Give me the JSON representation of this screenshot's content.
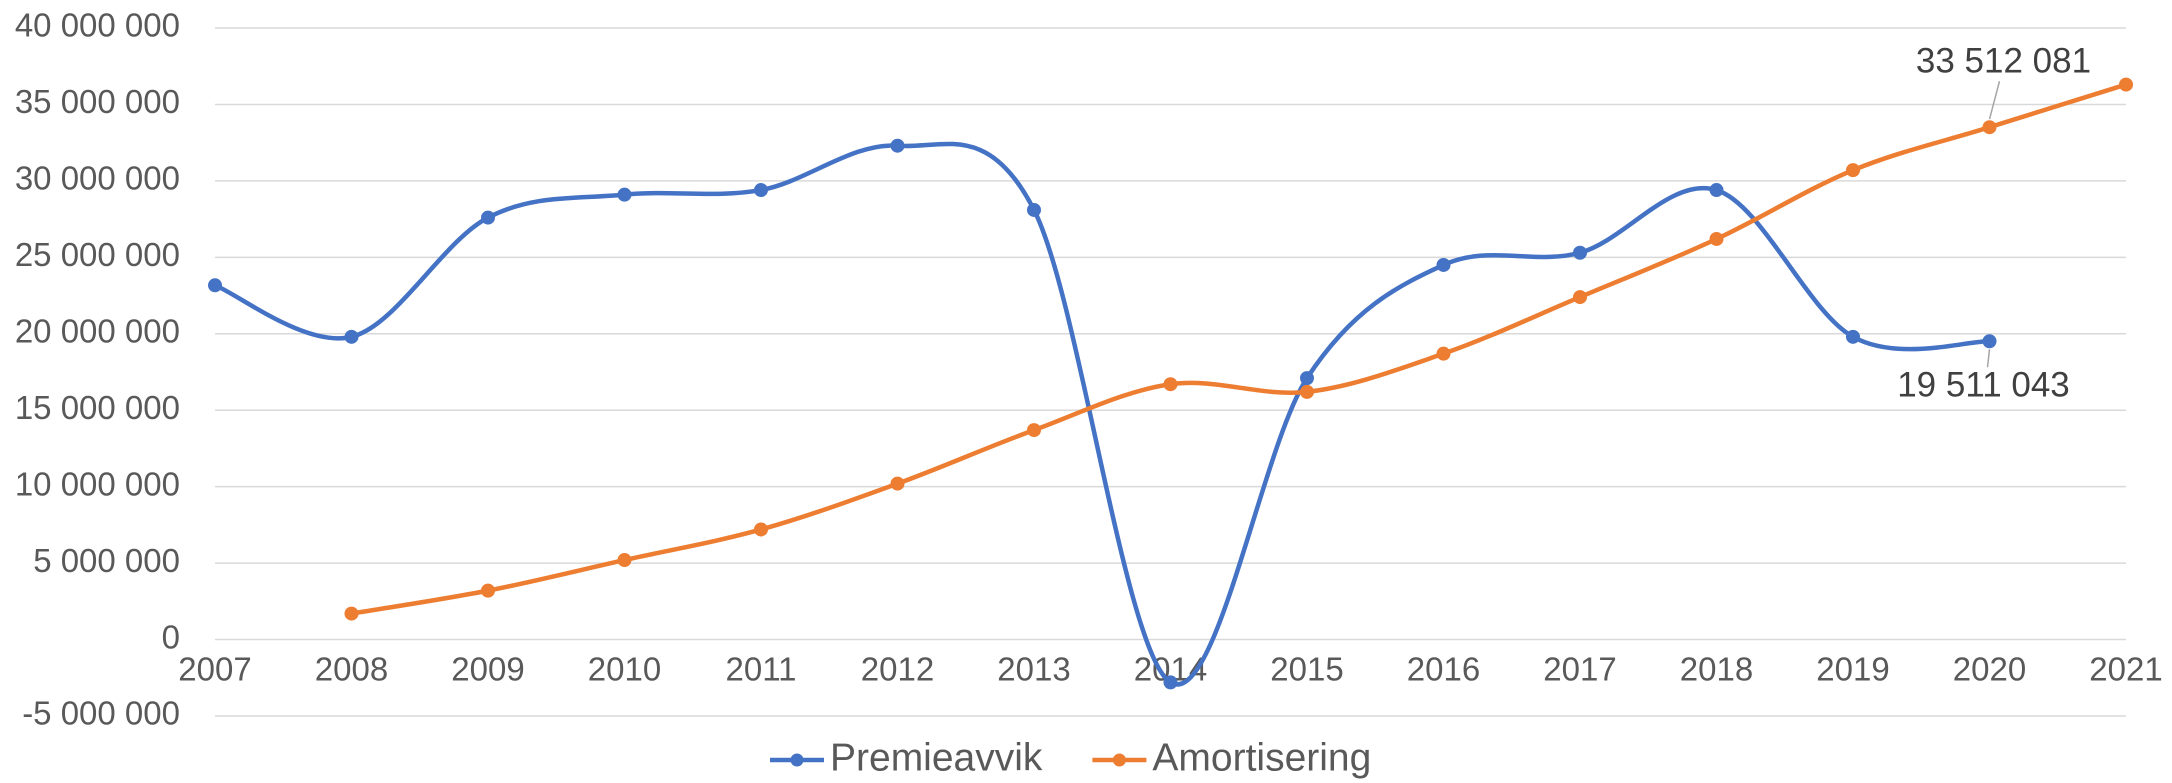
{
  "chart_data": {
    "type": "line",
    "categories": [
      "2007",
      "2008",
      "2009",
      "2010",
      "2011",
      "2012",
      "2013",
      "2014",
      "2015",
      "2016",
      "2017",
      "2018",
      "2019",
      "2020",
      "2021"
    ],
    "series": [
      {
        "name": "Premieavvik",
        "color": "#4472c4",
        "values": [
          23170000,
          19800000,
          27600000,
          29100000,
          29400000,
          32300000,
          28100000,
          -2800000,
          17100000,
          24500000,
          25300000,
          29400000,
          19800000,
          19511043,
          null
        ],
        "value_labels": [
          null,
          null,
          null,
          null,
          null,
          null,
          null,
          null,
          null,
          null,
          null,
          null,
          null,
          "19 511 043",
          null
        ]
      },
      {
        "name": "Amortisering",
        "color": "#ed7d31",
        "values": [
          null,
          1700000,
          3200000,
          5200000,
          7200000,
          10200000,
          13700000,
          16700000,
          16200000,
          18700000,
          22400000,
          26200000,
          30700000,
          33512081,
          36300000
        ],
        "value_labels": [
          null,
          null,
          null,
          null,
          null,
          null,
          null,
          null,
          null,
          null,
          null,
          null,
          null,
          "33 512 081",
          null
        ]
      }
    ],
    "ylim": [
      -5000000,
      40000000
    ],
    "yticks": [
      {
        "value": -5000000,
        "label": "-5 000 000"
      },
      {
        "value": 0,
        "label": "0"
      },
      {
        "value": 5000000,
        "label": "5 000 000"
      },
      {
        "value": 10000000,
        "label": "10 000 000"
      },
      {
        "value": 15000000,
        "label": "15 000 000"
      },
      {
        "value": 20000000,
        "label": "20 000 000"
      },
      {
        "value": 25000000,
        "label": "25 000 000"
      },
      {
        "value": 30000000,
        "label": "30 000 000"
      },
      {
        "value": 35000000,
        "label": "35 000 000"
      },
      {
        "value": 40000000,
        "label": "40 000 000"
      }
    ],
    "grid": true,
    "legend": "bottom",
    "smooth": true
  }
}
